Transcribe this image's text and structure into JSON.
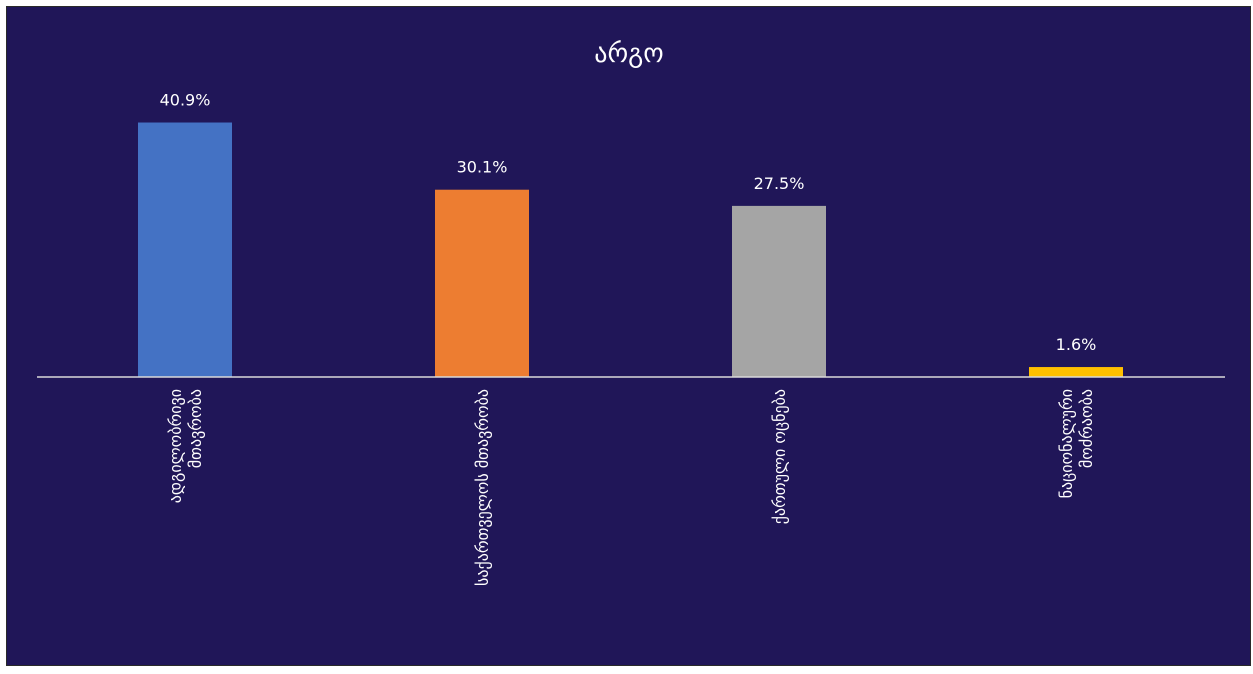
{
  "chart_data": {
    "type": "bar",
    "title": "არგო",
    "categories": [
      [
        "ადგილობრივი",
        "მთავრობა"
      ],
      [
        "საქართველოს მთავრობა"
      ],
      [
        "ქართული ოცნება"
      ],
      [
        "ნაციონალური",
        "მოძრაობა"
      ]
    ],
    "values": [
      40.9,
      30.1,
      27.5,
      1.6
    ],
    "data_labels": [
      "40.9%",
      "30.1%",
      "27.5%",
      "1.6%"
    ],
    "colors": [
      "#4472C4",
      "#ED7D31",
      "#A5A5A5",
      "#FFC000"
    ],
    "ylim": [
      0,
      45
    ],
    "grid": false,
    "legend": "none",
    "xlabel": "",
    "ylabel": ""
  },
  "colors": {
    "background": "#201658",
    "text": "#ffffff",
    "axis": "#D9D9D9"
  }
}
